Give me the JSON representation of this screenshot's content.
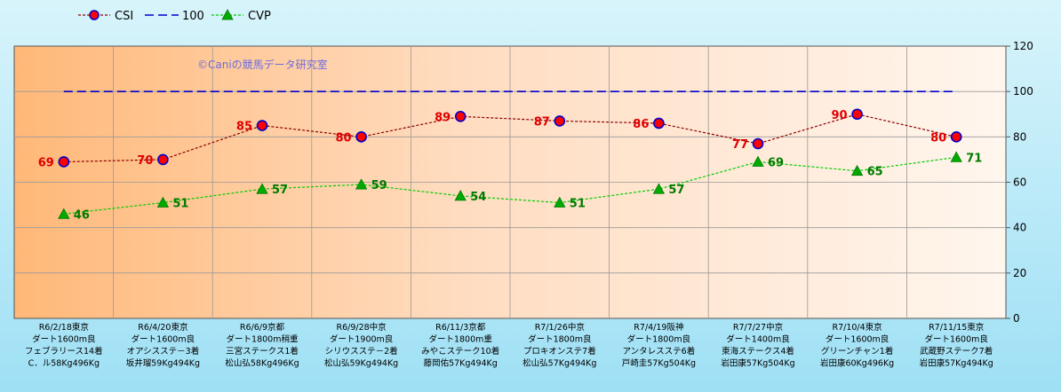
{
  "chart_data": {
    "type": "line",
    "watermark": "©Caniの競馬データ研究室",
    "ylim": [
      0,
      120
    ],
    "yticks": [
      0,
      20,
      40,
      60,
      80,
      100,
      120
    ],
    "grid": true,
    "legend_position": "top-left",
    "categories": [
      [
        "R6/2/18東京",
        "ダート1600m良",
        "フェブラリース14着",
        "C．ル58Kg496Kg"
      ],
      [
        "R6/4/20東京",
        "ダート1600m良",
        "オアシスステ－3着",
        "坂井瑠59Kg494Kg"
      ],
      [
        "R6/6/9京都",
        "ダート1800m稍重",
        "三宮ステークス1着",
        "松山弘58Kg496Kg"
      ],
      [
        "R6/9/28中京",
        "ダート1900m良",
        "シリウスステ－2着",
        "松山弘59Kg494Kg"
      ],
      [
        "R6/11/3京都",
        "ダート1800m重",
        "みやこステーク10着",
        "藤岡佑57Kg494Kg"
      ],
      [
        "R7/1/26中京",
        "ダート1800m良",
        "プロキオンステ7着",
        "松山弘57Kg494Kg"
      ],
      [
        "R7/4/19阪神",
        "ダート1800m良",
        "アンタレスステ6着",
        "戸崎圭57Kg504Kg"
      ],
      [
        "R7/7/27中京",
        "ダート1400m良",
        "東海ステークス4着",
        "岩田康57Kg504Kg"
      ],
      [
        "R7/10/4東京",
        "ダート1600m良",
        "グリーンチャン1着",
        "岩田康60Kg496Kg"
      ],
      [
        "R7/11/15東京",
        "ダート1600m良",
        "武蔵野ステーク7着",
        "岩田康57Kg494Kg"
      ]
    ],
    "series": [
      {
        "name": "CSI",
        "values": [
          69,
          70,
          85,
          80,
          89,
          87,
          86,
          77,
          90,
          80
        ],
        "color": "#8b0000",
        "marker": "circle",
        "marker_fill": "#ff0000",
        "marker_stroke": "#0000cc",
        "label_color": "#e00000"
      },
      {
        "name": "100",
        "values": [
          100,
          100,
          100,
          100,
          100,
          100,
          100,
          100,
          100,
          100
        ],
        "color": "#0000cc",
        "marker": "none"
      },
      {
        "name": "CVP",
        "values": [
          46,
          51,
          57,
          59,
          54,
          51,
          57,
          69,
          65,
          71
        ],
        "color": "#00cc00",
        "marker": "triangle",
        "marker_fill": "#00aa00",
        "label_color": "#007a00"
      }
    ]
  }
}
